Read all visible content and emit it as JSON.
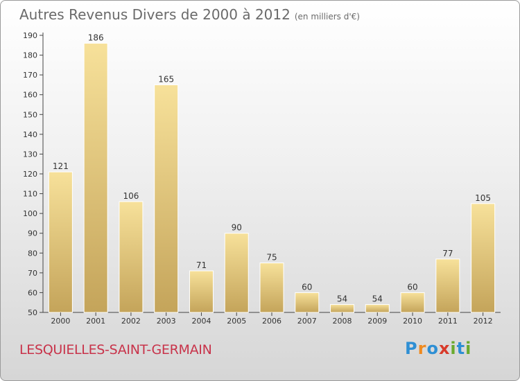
{
  "header": {
    "title": "Autres Revenus Divers de 2000 à 2012",
    "unit": "(en milliers d'€)"
  },
  "footer": {
    "commune": "LESQUIELLES-SAINT-GERMAIN",
    "brand": "Proxiti"
  },
  "colors": {
    "bar_light": "#f7e19a",
    "bar_dark": "#c4a45a",
    "commune_text": "#c8334a",
    "title_text": "#6a6a6a"
  },
  "chart_data": {
    "type": "bar",
    "title": "Autres Revenus Divers de 2000 à 2012",
    "subtitle": "(en milliers d'€)",
    "categories": [
      "2000",
      "2001",
      "2002",
      "2003",
      "2004",
      "2005",
      "2006",
      "2007",
      "2008",
      "2009",
      "2010",
      "2011",
      "2012"
    ],
    "values": [
      121,
      186,
      106,
      165,
      71,
      90,
      75,
      60,
      54,
      54,
      60,
      77,
      105
    ],
    "ylim": [
      50,
      190
    ],
    "yticks": [
      50,
      60,
      70,
      80,
      90,
      100,
      110,
      120,
      130,
      140,
      150,
      160,
      170,
      180,
      190
    ],
    "grid": false,
    "legend": "none"
  }
}
